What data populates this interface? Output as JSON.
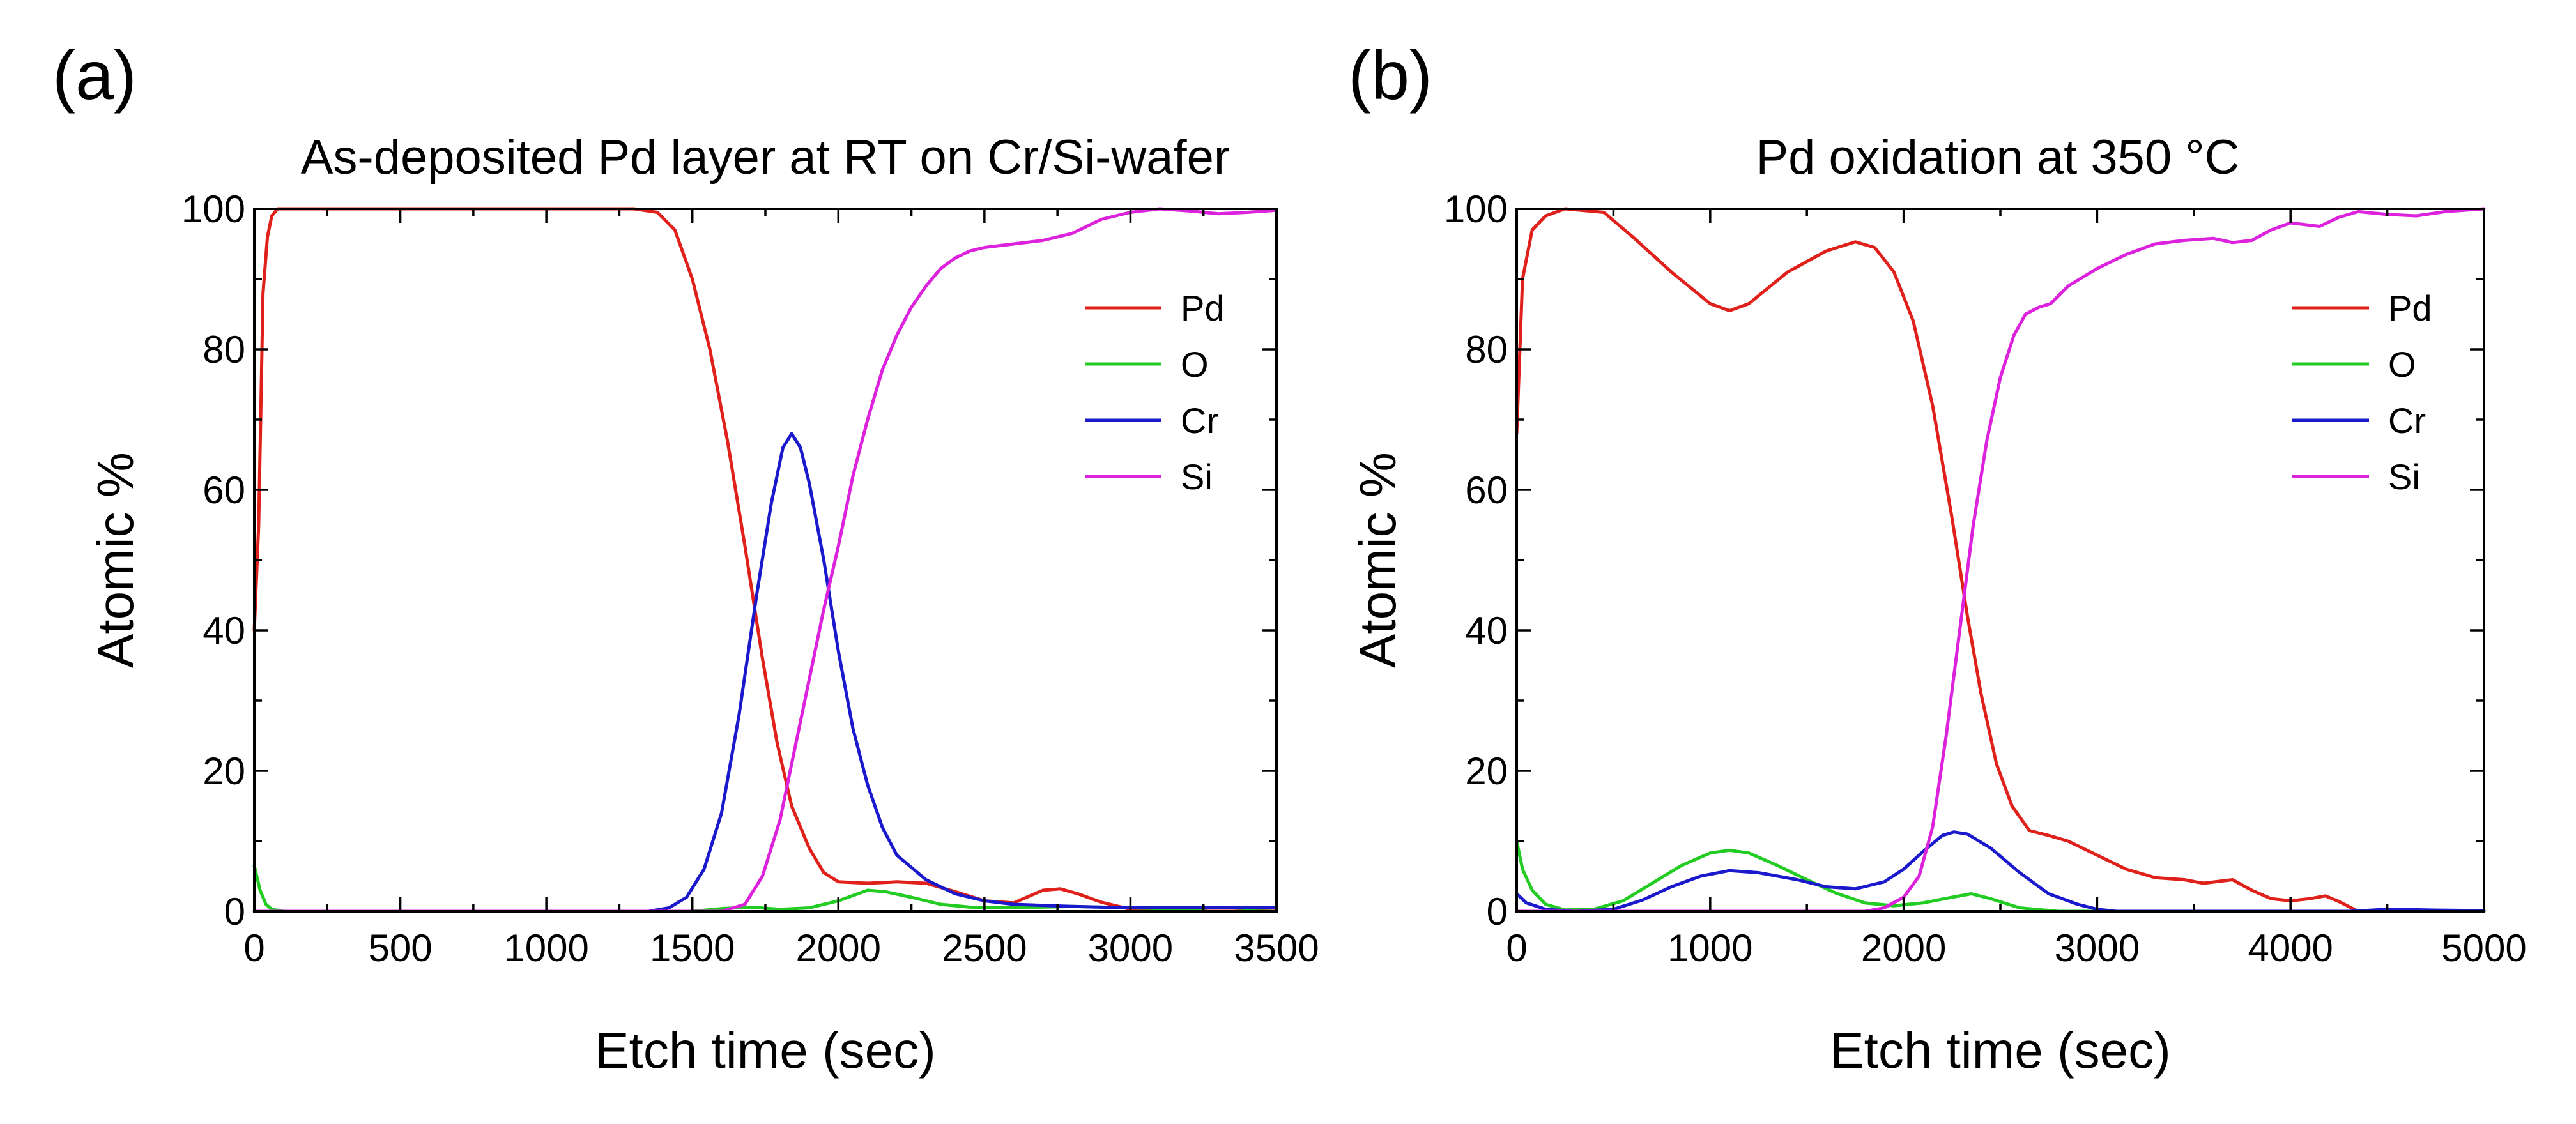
{
  "chart_data": [
    {
      "type": "line",
      "panel_label": "(a)",
      "title": "As-deposited Pd layer at RT on Cr/Si-wafer",
      "xlabel": "Etch time (sec)",
      "ylabel": "Atomic %",
      "xlim": [
        0,
        3500
      ],
      "ylim": [
        0,
        100
      ],
      "xticks": [
        0,
        500,
        1000,
        1500,
        2000,
        2500,
        3000,
        3500
      ],
      "yticks": [
        0,
        20,
        40,
        60,
        80,
        100
      ],
      "legend_position": "top-right",
      "series": [
        {
          "name": "Pd",
          "color": "#e0201a",
          "points": [
            [
              0,
              40
            ],
            [
              15,
              55
            ],
            [
              30,
              88
            ],
            [
              45,
              96
            ],
            [
              60,
              99
            ],
            [
              80,
              100
            ],
            [
              1300,
              100
            ],
            [
              1380,
              99.5
            ],
            [
              1440,
              97
            ],
            [
              1500,
              90
            ],
            [
              1560,
              80
            ],
            [
              1620,
              67
            ],
            [
              1680,
              52
            ],
            [
              1740,
              36
            ],
            [
              1790,
              24
            ],
            [
              1840,
              15
            ],
            [
              1900,
              9
            ],
            [
              1950,
              5.5
            ],
            [
              2000,
              4.2
            ],
            [
              2100,
              4
            ],
            [
              2200,
              4.2
            ],
            [
              2300,
              4
            ],
            [
              2400,
              2.8
            ],
            [
              2500,
              1.5
            ],
            [
              2600,
              1.2
            ],
            [
              2700,
              3
            ],
            [
              2760,
              3.2
            ],
            [
              2820,
              2.5
            ],
            [
              2900,
              1.3
            ],
            [
              3000,
              0.3
            ],
            [
              3100,
              0
            ],
            [
              3500,
              0
            ]
          ]
        },
        {
          "name": "O",
          "color": "#22cc22",
          "points": [
            [
              0,
              6.5
            ],
            [
              20,
              3
            ],
            [
              40,
              1
            ],
            [
              60,
              0.3
            ],
            [
              100,
              0
            ],
            [
              1500,
              0
            ],
            [
              1600,
              0.4
            ],
            [
              1700,
              0.6
            ],
            [
              1800,
              0.3
            ],
            [
              1900,
              0.5
            ],
            [
              2000,
              1.5
            ],
            [
              2100,
              3
            ],
            [
              2160,
              2.8
            ],
            [
              2250,
              2
            ],
            [
              2350,
              1
            ],
            [
              2450,
              0.6
            ],
            [
              2600,
              0.5
            ],
            [
              2800,
              0.7
            ],
            [
              3000,
              0.5
            ],
            [
              3200,
              0.3
            ],
            [
              3300,
              0.6
            ],
            [
              3400,
              0.4
            ],
            [
              3500,
              0.5
            ]
          ]
        },
        {
          "name": "Cr",
          "color": "#1a1acc",
          "points": [
            [
              0,
              0
            ],
            [
              1350,
              0
            ],
            [
              1420,
              0.5
            ],
            [
              1480,
              2
            ],
            [
              1540,
              6
            ],
            [
              1600,
              14
            ],
            [
              1660,
              28
            ],
            [
              1720,
              45
            ],
            [
              1770,
              58
            ],
            [
              1810,
              66
            ],
            [
              1840,
              68
            ],
            [
              1870,
              66
            ],
            [
              1900,
              61
            ],
            [
              1950,
              50
            ],
            [
              2000,
              37
            ],
            [
              2050,
              26
            ],
            [
              2100,
              18
            ],
            [
              2150,
              12
            ],
            [
              2200,
              8
            ],
            [
              2300,
              4.5
            ],
            [
              2400,
              2.5
            ],
            [
              2500,
              1.5
            ],
            [
              2600,
              1
            ],
            [
              2800,
              0.7
            ],
            [
              3000,
              0.5
            ],
            [
              3200,
              0.5
            ],
            [
              3500,
              0.5
            ]
          ]
        },
        {
          "name": "Si",
          "color": "#dd22dd",
          "points": [
            [
              0,
              0
            ],
            [
              1600,
              0
            ],
            [
              1680,
              1
            ],
            [
              1740,
              5
            ],
            [
              1800,
              13
            ],
            [
              1850,
              23
            ],
            [
              1900,
              33
            ],
            [
              1950,
              43
            ],
            [
              2000,
              52
            ],
            [
              2050,
              62
            ],
            [
              2100,
              70
            ],
            [
              2150,
              77
            ],
            [
              2200,
              82
            ],
            [
              2250,
              86
            ],
            [
              2300,
              89
            ],
            [
              2350,
              91.5
            ],
            [
              2400,
              93
            ],
            [
              2450,
              94
            ],
            [
              2500,
              94.5
            ],
            [
              2600,
              95
            ],
            [
              2700,
              95.5
            ],
            [
              2800,
              96.5
            ],
            [
              2900,
              98.5
            ],
            [
              3000,
              99.5
            ],
            [
              3100,
              100
            ],
            [
              3200,
              99.7
            ],
            [
              3300,
              99.3
            ],
            [
              3400,
              99.5
            ],
            [
              3500,
              99.8
            ]
          ]
        }
      ]
    },
    {
      "type": "line",
      "panel_label": "(b)",
      "title": "Pd oxidation at 350 °C",
      "xlabel": "Etch time (sec)",
      "ylabel": "Atomic %",
      "xlim": [
        0,
        5000
      ],
      "ylim": [
        0,
        100
      ],
      "xticks": [
        0,
        1000,
        2000,
        3000,
        4000,
        5000
      ],
      "yticks": [
        0,
        20,
        40,
        60,
        80,
        100
      ],
      "legend_position": "top-right",
      "series": [
        {
          "name": "Pd",
          "color": "#e0201a",
          "points": [
            [
              0,
              68
            ],
            [
              30,
              90
            ],
            [
              80,
              97
            ],
            [
              150,
              99
            ],
            [
              250,
              100
            ],
            [
              450,
              99.5
            ],
            [
              600,
              96
            ],
            [
              800,
              91
            ],
            [
              1000,
              86.5
            ],
            [
              1100,
              85.5
            ],
            [
              1200,
              86.5
            ],
            [
              1400,
              91
            ],
            [
              1600,
              94
            ],
            [
              1750,
              95.3
            ],
            [
              1850,
              94.5
            ],
            [
              1950,
              91
            ],
            [
              2050,
              84
            ],
            [
              2150,
              72
            ],
            [
              2250,
              56
            ],
            [
              2330,
              42
            ],
            [
              2400,
              31
            ],
            [
              2480,
              21
            ],
            [
              2560,
              15
            ],
            [
              2650,
              11.5
            ],
            [
              2750,
              10.8
            ],
            [
              2850,
              10
            ],
            [
              3000,
              8
            ],
            [
              3150,
              6
            ],
            [
              3300,
              4.8
            ],
            [
              3450,
              4.5
            ],
            [
              3550,
              4
            ],
            [
              3700,
              4.5
            ],
            [
              3800,
              3
            ],
            [
              3900,
              1.8
            ],
            [
              4000,
              1.5
            ],
            [
              4100,
              1.8
            ],
            [
              4180,
              2.2
            ],
            [
              4250,
              1.4
            ],
            [
              4350,
              0
            ],
            [
              5000,
              0
            ]
          ]
        },
        {
          "name": "O",
          "color": "#22cc22",
          "points": [
            [
              0,
              10
            ],
            [
              30,
              6
            ],
            [
              80,
              3
            ],
            [
              150,
              1
            ],
            [
              250,
              0.2
            ],
            [
              400,
              0.3
            ],
            [
              550,
              1.5
            ],
            [
              700,
              4
            ],
            [
              850,
              6.5
            ],
            [
              1000,
              8.3
            ],
            [
              1100,
              8.7
            ],
            [
              1200,
              8.3
            ],
            [
              1350,
              6.5
            ],
            [
              1500,
              4.5
            ],
            [
              1650,
              2.6
            ],
            [
              1800,
              1.2
            ],
            [
              1950,
              0.8
            ],
            [
              2100,
              1.2
            ],
            [
              2250,
              2
            ],
            [
              2350,
              2.5
            ],
            [
              2450,
              1.8
            ],
            [
              2600,
              0.5
            ],
            [
              2800,
              0
            ],
            [
              5000,
              0
            ]
          ]
        },
        {
          "name": "Cr",
          "color": "#1a1acc",
          "points": [
            [
              0,
              2.5
            ],
            [
              50,
              1.2
            ],
            [
              150,
              0.3
            ],
            [
              300,
              0
            ],
            [
              500,
              0.3
            ],
            [
              650,
              1.6
            ],
            [
              800,
              3.5
            ],
            [
              950,
              5
            ],
            [
              1100,
              5.8
            ],
            [
              1250,
              5.5
            ],
            [
              1450,
              4.5
            ],
            [
              1600,
              3.5
            ],
            [
              1750,
              3.2
            ],
            [
              1900,
              4.2
            ],
            [
              2000,
              6
            ],
            [
              2100,
              8.5
            ],
            [
              2200,
              10.8
            ],
            [
              2260,
              11.3
            ],
            [
              2330,
              11
            ],
            [
              2450,
              9
            ],
            [
              2600,
              5.5
            ],
            [
              2750,
              2.5
            ],
            [
              2900,
              1
            ],
            [
              3000,
              0.3
            ],
            [
              3100,
              0
            ],
            [
              4000,
              0
            ],
            [
              4300,
              0
            ],
            [
              4500,
              0.3
            ],
            [
              4700,
              0.2
            ],
            [
              5000,
              0.1
            ]
          ]
        },
        {
          "name": "Si",
          "color": "#dd22dd",
          "points": [
            [
              0,
              0
            ],
            [
              1800,
              0
            ],
            [
              1900,
              0.5
            ],
            [
              2000,
              2
            ],
            [
              2080,
              5
            ],
            [
              2150,
              12
            ],
            [
              2220,
              25
            ],
            [
              2290,
              40
            ],
            [
              2360,
              55
            ],
            [
              2430,
              67
            ],
            [
              2500,
              76
            ],
            [
              2570,
              82
            ],
            [
              2630,
              85
            ],
            [
              2700,
              86
            ],
            [
              2760,
              86.5
            ],
            [
              2850,
              89
            ],
            [
              3000,
              91.5
            ],
            [
              3150,
              93.5
            ],
            [
              3300,
              95
            ],
            [
              3450,
              95.5
            ],
            [
              3600,
              95.8
            ],
            [
              3700,
              95.2
            ],
            [
              3800,
              95.5
            ],
            [
              3900,
              97
            ],
            [
              4000,
              98
            ],
            [
              4150,
              97.5
            ],
            [
              4250,
              98.8
            ],
            [
              4350,
              99.6
            ],
            [
              4500,
              99.2
            ],
            [
              4650,
              99
            ],
            [
              4800,
              99.6
            ],
            [
              5000,
              100
            ]
          ]
        }
      ]
    }
  ]
}
